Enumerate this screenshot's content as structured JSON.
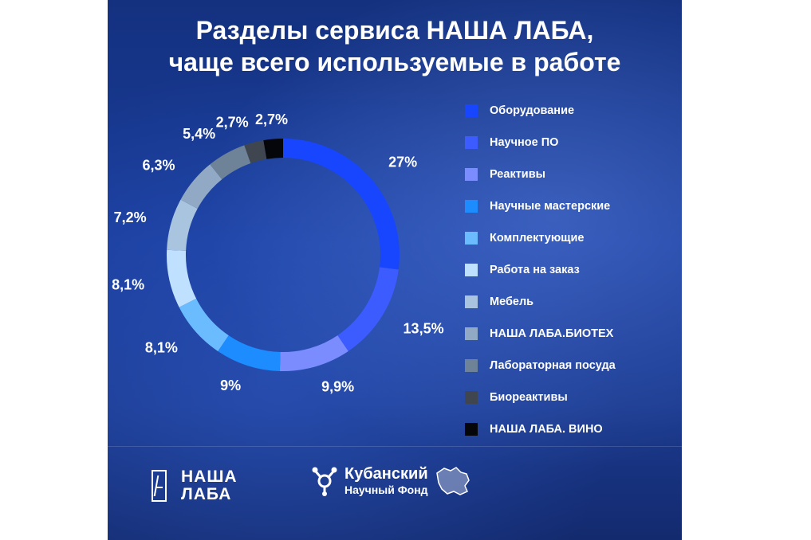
{
  "header": {
    "title_line1": "Разделы сервиса НАША ЛАБА,",
    "title_line2": "чаще всего используемые в работе"
  },
  "chart_data": {
    "type": "pie",
    "donut": true,
    "title": "Разделы сервиса НАША ЛАБА, чаще всего используемые в работе",
    "legend_position": "right",
    "slices": [
      {
        "label": "Оборудование",
        "value": 27,
        "value_label": "27%",
        "color": "#1846ff"
      },
      {
        "label": "Научное ПО",
        "value": 13.5,
        "value_label": "13,5%",
        "color": "#3c5cff"
      },
      {
        "label": "Реактивы",
        "value": 9.9,
        "value_label": "9,9%",
        "color": "#7b8cff"
      },
      {
        "label": "Научные мастерские",
        "value": 9,
        "value_label": "9%",
        "color": "#1c8cff"
      },
      {
        "label": "Комплектующие",
        "value": 8.1,
        "value_label": "8,1%",
        "color": "#6bbcff"
      },
      {
        "label": "Работа на заказ",
        "value": 8.1,
        "value_label": "8,1%",
        "color": "#bfe0ff"
      },
      {
        "label": "Мебель",
        "value": 7.2,
        "value_label": "7,2%",
        "color": "#a9c4df"
      },
      {
        "label": "НАША ЛАБА.БИОТЕХ",
        "value": 6.3,
        "value_label": "6,3%",
        "color": "#91a9c4"
      },
      {
        "label": "Лабораторная посуда",
        "value": 5.4,
        "value_label": "5,4%",
        "color": "#6e8398"
      },
      {
        "label": "Биореактивы",
        "value": 2.7,
        "value_label": "2,7%",
        "color": "#3f4650"
      },
      {
        "label": "НАША ЛАБА. ВИНО",
        "value": 2.7,
        "value_label": "2,7%",
        "color": "#05060a"
      }
    ]
  },
  "footer": {
    "logo1_line1": "НАША",
    "logo1_line2": "ЛАБА",
    "logo2_line1": "Кубанский",
    "logo2_line2": "Научный Фонд"
  }
}
